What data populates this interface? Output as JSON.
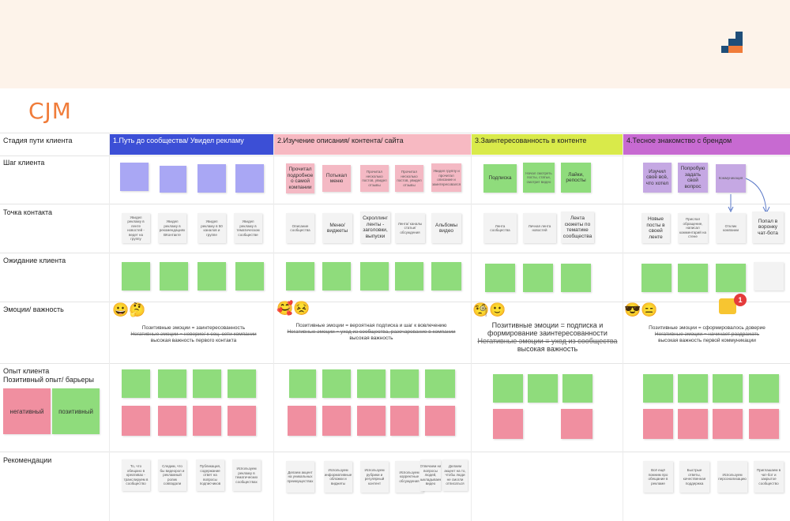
{
  "title": "CJM",
  "colors": {
    "accent": "#f07c3a",
    "logo_dark": "#1f4e79",
    "logo_orange": "#f07c3a"
  },
  "rows": {
    "stage": "Стадия пути клиента",
    "step": "Шаг клиента",
    "touch": "Точка контакта",
    "expect": "Ожидание клиента",
    "emotion": "Эмоции/ важность",
    "exp": "Опыт клиента\nПозитивный опыт/ барьеры",
    "rec": "Рекомендации"
  },
  "legend": {
    "negative": "негативный",
    "positive": "позитивный"
  },
  "stages": [
    {
      "label": "1.Путь до сообщества/ Увидел рекламу",
      "color": "#3c4fd6",
      "text_color": "#ffffff"
    },
    {
      "label": "2.Изучение описания/ контента/ сайта",
      "color": "#f7b9c2",
      "text_color": "#222222"
    },
    {
      "label": "3.Заинтересованность в контенте",
      "color": "#d9ea4a",
      "text_color": "#222222"
    },
    {
      "label": "4.Тесное знакомство с брендом",
      "color": "#c76ad1",
      "text_color": "#222222"
    }
  ],
  "steps": {
    "s2": [
      "Прочитал подробное о самой компании",
      "Потыкал меню",
      "Прочитал несколько постов, увидел отзывы",
      "Прочитал несколько постов, увидел отзывы",
      "Увидел группу и прочитал описание и заинтересовался"
    ],
    "s3": [
      "Подписка",
      "Начал смотреть посты, статьи, смотрит видео",
      "Лайки, репосты"
    ],
    "s4": [
      "Изучил своё всё, что хотел",
      "Попробую задать свой вопрос",
      "Коммуникация"
    ]
  },
  "touch": {
    "s1": [
      "Увидел рекламу в ленте новостей - ведет на группу",
      "Увидел рекламу в рекомендациях ВКонтакте",
      "Увидел рекламу в 50 каналов и группе",
      "Увидел рекламу в тематическом сообществе"
    ],
    "s2": [
      "Описание сообщества",
      "Меню/ виджеты",
      "Скроллинг ленты - заголовки, выпуски",
      "Лента/ каналы статьи/ обсуждения",
      "Альбомы видео"
    ],
    "s3": [
      "Лента сообщества",
      "Личная лента новостей",
      "Лента сюжеты по тематике сообщества"
    ],
    "s4": [
      "Новые посты в своей ленте",
      "Прислал обращение, написал комментарий на стене",
      "Отклик компании",
      "Попал в воронку чат-бота"
    ]
  },
  "emotion": {
    "s1": {
      "emoji": "😀🤔",
      "pos": "Позитивные эмоции = заинтересованность",
      "neg": "Негативные эмоции = неверие/ к соц. сети компании",
      "imp": "высокая важность первого контакта"
    },
    "s2": {
      "emoji": "🥰😣",
      "pos": "Позитивные эмоции = вероятная подписка и шаг к вовлечению",
      "neg": "Негативные эмоции = уход из сообщества, разочарование в компании",
      "imp": "высокая важность"
    },
    "s3": {
      "emoji": "🧐🙂",
      "pos": "Позитивные эмоции = подписка и формирование заинтересованности",
      "neg": "Негативные эмоции = уход из сообщества",
      "imp": "высокая важность"
    },
    "s4": {
      "emoji": "😎😑",
      "pos": "Позитивные эмоции = сформировалось доверие",
      "neg": "Негативные эмоции = начинает раздражать",
      "imp": "высокая важность первой коммуникации",
      "badge": "1"
    }
  },
  "recommend": {
    "s1": [
      "То, что обещано в креативах - транслируем в сообщество",
      "Следим, что бы видеорол и рекламный ролик совпадали",
      "Публикация, содержание ответ на вопросы подписчиков",
      "Используем рекламу в тематических сообществах"
    ],
    "s2": [
      "Делаем акцент на уникальных преимуществах",
      "Используем информативные обложки и виджеты",
      "Используем рубрики и регулярный контент",
      "Используем корректные обсуждения",
      "Отвечаем на вопросы людей, выкладываем видео",
      "Делаем акцент на то, чтобы люди не смогли отписаться"
    ],
    "s4": [
      "Всё ещё помним про обещание в рекламе",
      "Быстрые ответы, качественная поддержка",
      "Используем персонализацию",
      "Приглашаем в чат-бот и закрытое сообщество"
    ]
  }
}
